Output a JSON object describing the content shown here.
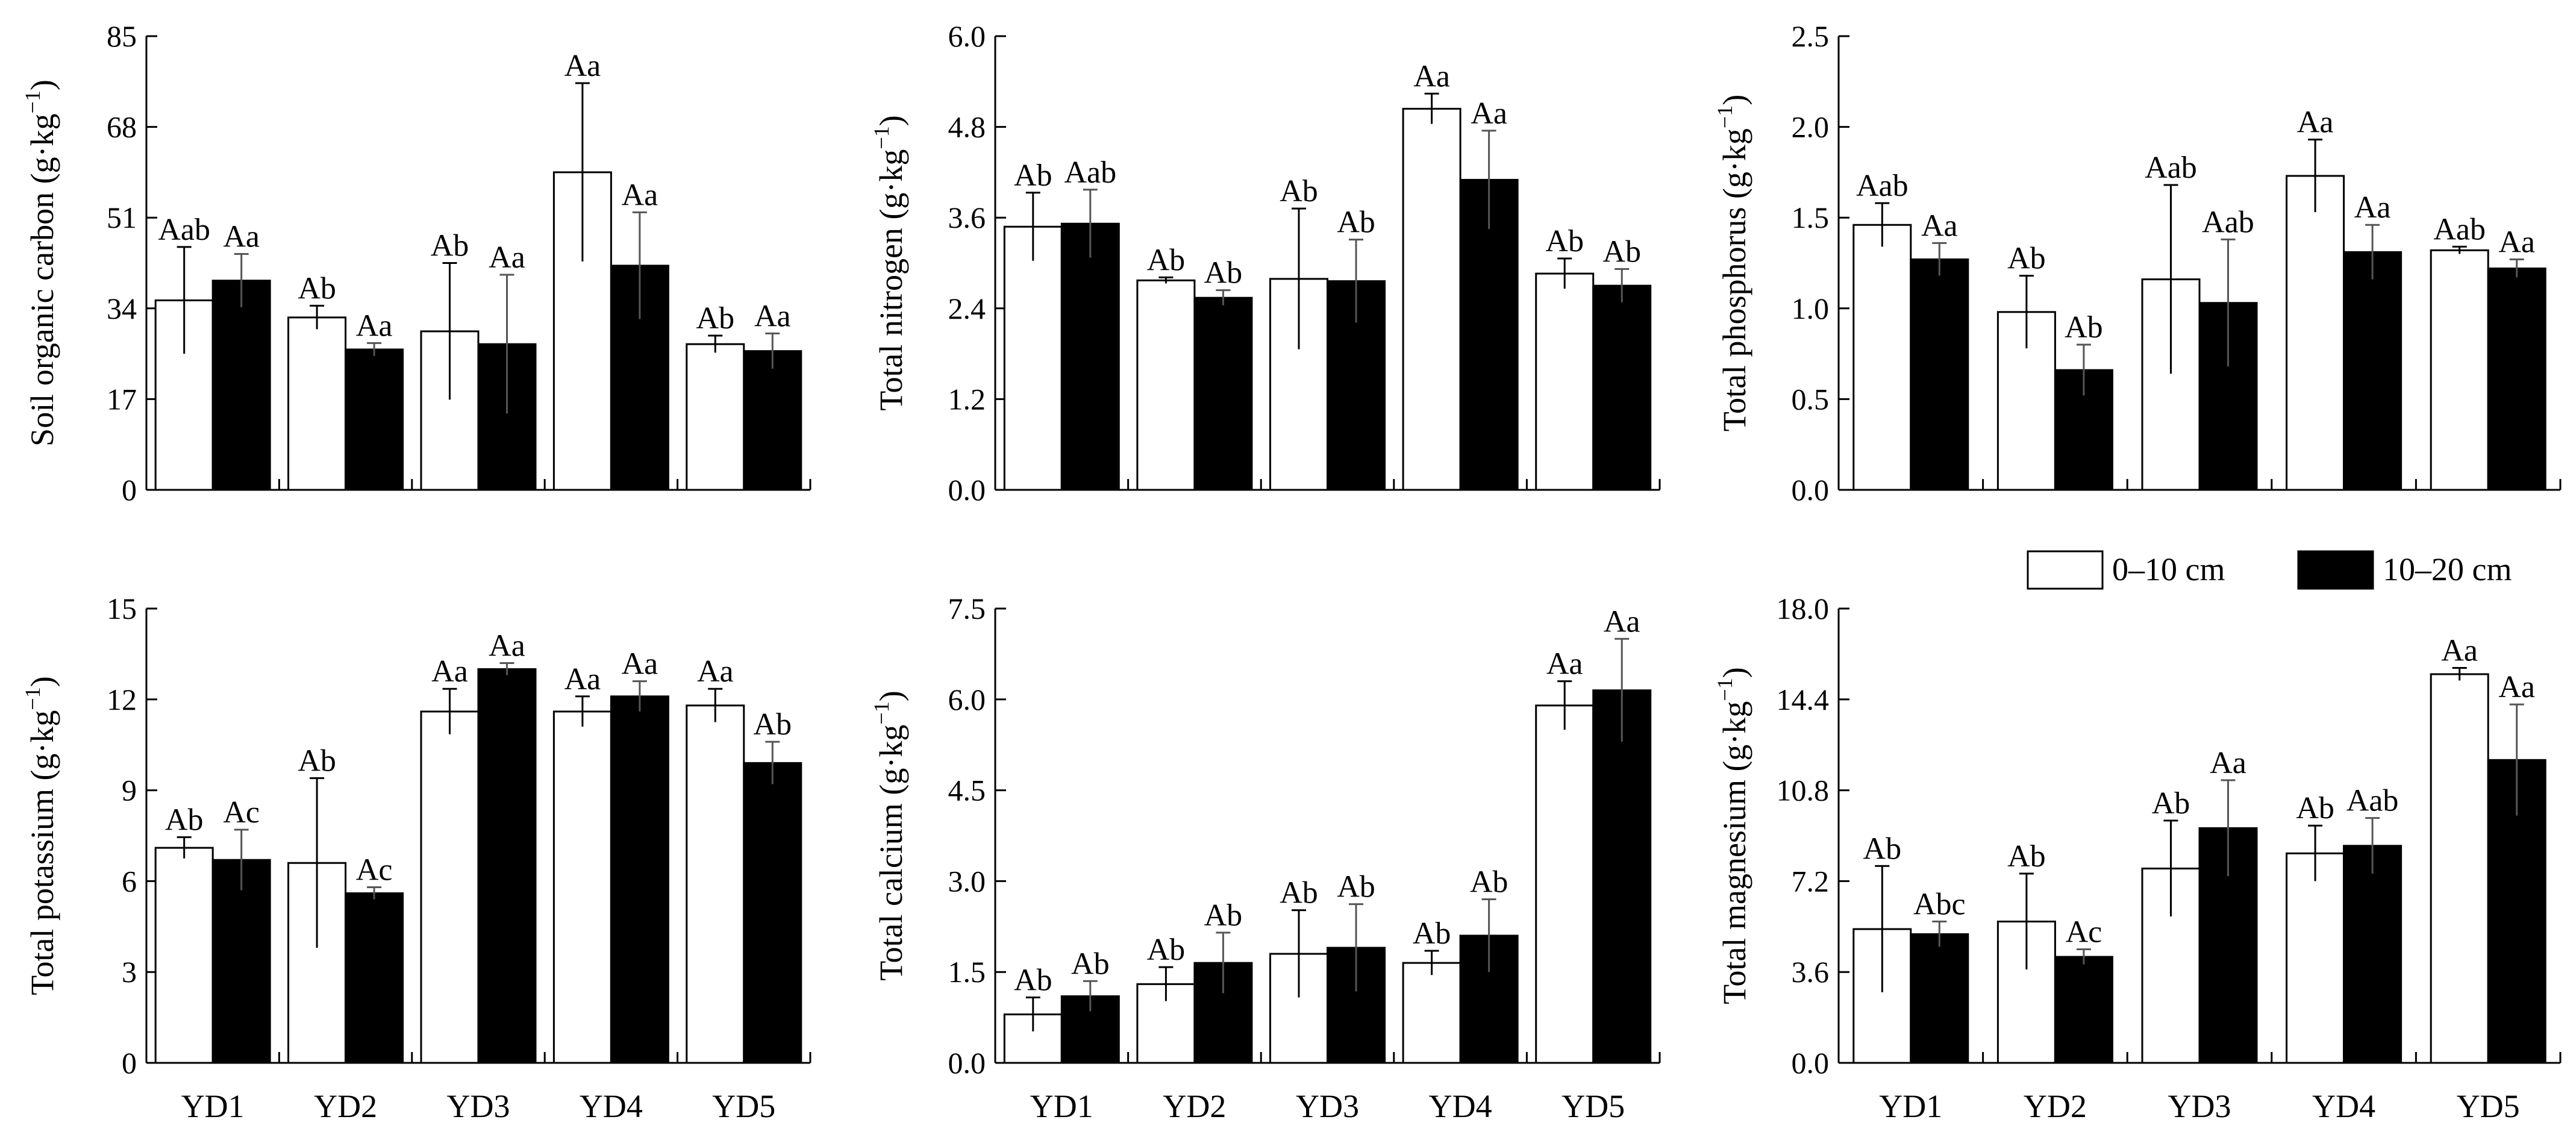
{
  "chart_data": {
    "type": "bar",
    "categories": [
      "YD1",
      "YD2",
      "YD3",
      "YD4",
      "YD5"
    ],
    "series_names": [
      "0–10 cm",
      "10–20 cm"
    ],
    "series_colors": [
      "#ffffff",
      "#000000"
    ],
    "legend": {
      "position": "top-right of bottom-right panel",
      "labels": [
        "0–10 cm",
        "10–20 cm"
      ]
    },
    "panels": [
      {
        "id": "soc",
        "ylabel": "Soil organic carbon (g·kg⁻¹)",
        "ylabel_main": "Soil organic carbon (g·kg",
        "ylabel_sup": "−1",
        "ylabel_close": ")",
        "ylim": [
          0,
          85
        ],
        "ticks": [
          0,
          17,
          34,
          51,
          68,
          85
        ],
        "tick_labels": [
          "0",
          "17",
          "34",
          "51",
          "68",
          "85"
        ],
        "series": [
          {
            "name": "0–10 cm",
            "values": [
              35.5,
              32.3,
              29.7,
              59.5,
              27.3
            ],
            "errors": [
              10,
              2.2,
              12.8,
              16.7,
              1.6
            ],
            "labels": [
              "Aab",
              "Ab",
              "Ab",
              "Aa",
              "Ab"
            ]
          },
          {
            "name": "10–20 cm",
            "values": [
              39.2,
              26.3,
              27.3,
              42,
              26
            ],
            "errors": [
              5,
              1.2,
              13,
              10,
              3.3
            ],
            "labels": [
              "Aa",
              "Aa",
              "Aa",
              "Aa",
              "Aa"
            ]
          }
        ]
      },
      {
        "id": "tn",
        "ylabel": "Total nitrogen (g·kg⁻¹)",
        "ylabel_main": "Total nitrogen (g·kg",
        "ylabel_sup": "−1",
        "ylabel_close": ")",
        "ylim": [
          0,
          6
        ],
        "ticks": [
          0,
          1.2,
          2.4,
          3.6,
          4.8,
          6
        ],
        "tick_labels": [
          "0.0",
          "1.2",
          "2.4",
          "3.6",
          "4.8",
          "6.0"
        ],
        "series": [
          {
            "name": "0–10 cm",
            "values": [
              3.48,
              2.77,
              2.79,
              5.04,
              2.86
            ],
            "errors": [
              0.45,
              0.04,
              0.93,
              0.2,
              0.2
            ],
            "labels": [
              "Ab",
              "Ab",
              "Ab",
              "Aa",
              "Ab"
            ]
          },
          {
            "name": "10–20 cm",
            "values": [
              3.52,
              2.54,
              2.76,
              4.1,
              2.7
            ],
            "errors": [
              0.45,
              0.1,
              0.55,
              0.65,
              0.22
            ],
            "labels": [
              "Aab",
              "Ab",
              "Ab",
              "Aa",
              "Ab"
            ]
          }
        ]
      },
      {
        "id": "tp",
        "ylabel": "Total phosphorus (g·kg⁻¹)",
        "ylabel_main": "Total phosphorus (g·kg",
        "ylabel_sup": "−1",
        "ylabel_close": ")",
        "ylim": [
          0,
          2.5
        ],
        "ticks": [
          0,
          0.5,
          1,
          1.5,
          2,
          2.5
        ],
        "tick_labels": [
          "0.0",
          "0.5",
          "1.0",
          "1.5",
          "2.0",
          "2.5"
        ],
        "series": [
          {
            "name": "0–10 cm",
            "values": [
              1.46,
              0.98,
              1.16,
              1.73,
              1.32
            ],
            "errors": [
              0.12,
              0.2,
              0.52,
              0.2,
              0.02
            ],
            "labels": [
              "Aab",
              "Ab",
              "Aab",
              "Aa",
              "Aab"
            ]
          },
          {
            "name": "10–20 cm",
            "values": [
              1.27,
              0.66,
              1.03,
              1.31,
              1.22
            ],
            "errors": [
              0.09,
              0.14,
              0.35,
              0.15,
              0.05
            ],
            "labels": [
              "Aa",
              "Ab",
              "Aab",
              "Aa",
              "Aa"
            ]
          }
        ]
      },
      {
        "id": "tk",
        "ylabel": "Total potassium (g·kg⁻¹)",
        "ylabel_main": "Total potassium (g·kg",
        "ylabel_sup": "−1",
        "ylabel_close": ")",
        "ylim": [
          0,
          15
        ],
        "ticks": [
          0,
          3,
          6,
          9,
          12,
          15
        ],
        "tick_labels": [
          "0",
          "3",
          "6",
          "9",
          "12",
          "15"
        ],
        "series": [
          {
            "name": "0–10 cm",
            "values": [
              7.1,
              6.6,
              11.6,
              11.6,
              11.8
            ],
            "errors": [
              0.35,
              2.8,
              0.75,
              0.5,
              0.55
            ],
            "labels": [
              "Ab",
              "Ab",
              "Aa",
              "Aa",
              "Aa"
            ]
          },
          {
            "name": "10–20 cm",
            "values": [
              6.7,
              5.6,
              13,
              12.1,
              9.9
            ],
            "errors": [
              1,
              0.2,
              0.2,
              0.5,
              0.7
            ],
            "labels": [
              "Ac",
              "Ac",
              "Aa",
              "Aa",
              "Ab"
            ]
          }
        ]
      },
      {
        "id": "tca",
        "ylabel": "Total calcium (g·kg⁻¹)",
        "ylabel_main": "Total calcium (g·kg",
        "ylabel_sup": "−1",
        "ylabel_close": ")",
        "ylim": [
          0,
          7.5
        ],
        "ticks": [
          0,
          1.5,
          3,
          4.5,
          6,
          7.5
        ],
        "tick_labels": [
          "0.0",
          "1.5",
          "3.0",
          "4.5",
          "6.0",
          "7.5"
        ],
        "series": [
          {
            "name": "0–10 cm",
            "values": [
              0.8,
              1.3,
              1.8,
              1.65,
              5.9
            ],
            "errors": [
              0.28,
              0.28,
              0.72,
              0.2,
              0.4
            ],
            "labels": [
              "Ab",
              "Ab",
              "Ab",
              "Ab",
              "Aa"
            ]
          },
          {
            "name": "10–20 cm",
            "values": [
              1.1,
              1.65,
              1.9,
              2.1,
              6.15
            ],
            "errors": [
              0.25,
              0.5,
              0.72,
              0.6,
              0.85
            ],
            "labels": [
              "Ab",
              "Ab",
              "Ab",
              "Ab",
              "Aa"
            ]
          }
        ]
      },
      {
        "id": "tmg",
        "ylabel": "Total magnesium (g·kg⁻¹)",
        "ylabel_main": "Total magnesium (g·kg",
        "ylabel_sup": "−1",
        "ylabel_close": ")",
        "ylim": [
          0,
          18
        ],
        "ticks": [
          0,
          3.6,
          7.2,
          10.8,
          14.4,
          18
        ],
        "tick_labels": [
          "0.0",
          "3.6",
          "7.2",
          "10.8",
          "14.4",
          "18.0"
        ],
        "series": [
          {
            "name": "0–10 cm",
            "values": [
              5.3,
              5.6,
              7.7,
              8.3,
              15.4
            ],
            "errors": [
              2.5,
              1.9,
              1.9,
              1.1,
              0.25
            ],
            "labels": [
              "Ab",
              "Ab",
              "Ab",
              "Ab",
              "Aa"
            ]
          },
          {
            "name": "10–20 cm",
            "values": [
              5.1,
              4.2,
              9.3,
              8.6,
              12
            ],
            "errors": [
              0.5,
              0.3,
              1.9,
              1.1,
              2.2
            ],
            "labels": [
              "Abc",
              "Ac",
              "Aa",
              "Aab",
              "Aa"
            ]
          }
        ]
      }
    ]
  }
}
